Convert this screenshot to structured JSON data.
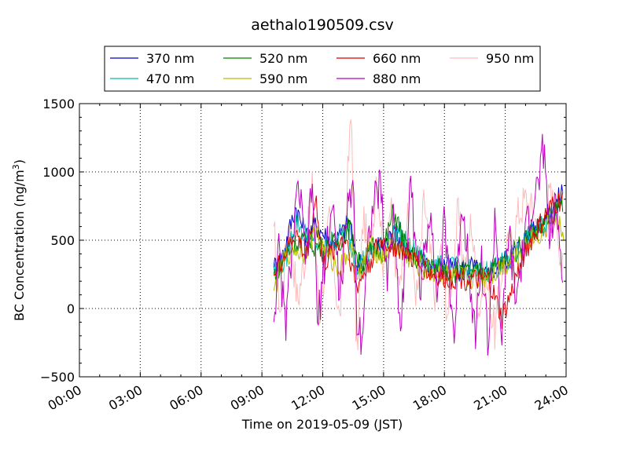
{
  "chart_data": {
    "type": "line",
    "title": "aethalo190509.csv",
    "xlabel": "Time on 2019-05-09 (JST)",
    "ylabel": {
      "prefix": "BC Concentration (ng/m",
      "sup": "3",
      "suffix": ")"
    },
    "xlim": [
      "00:00",
      "24:00"
    ],
    "ylim": [
      -500,
      1500
    ],
    "x_ticks": [
      "00:00",
      "03:00",
      "06:00",
      "09:00",
      "12:00",
      "15:00",
      "18:00",
      "21:00",
      "24:00"
    ],
    "y_ticks": [
      "−500",
      "0",
      "500",
      "1000",
      "1500"
    ],
    "grid": true,
    "legend_position": "top, above plot",
    "series": [
      {
        "name": "370 nm",
        "color": "#0000cc",
        "anchors": [
          [
            "09:35",
            300
          ],
          [
            "10:00",
            380
          ],
          [
            "10:40",
            750
          ],
          [
            "11:10",
            520
          ],
          [
            "11:40",
            610
          ],
          [
            "12:30",
            470
          ],
          [
            "13:00",
            560
          ],
          [
            "13:20",
            640
          ],
          [
            "13:40",
            310
          ],
          [
            "14:20",
            420
          ],
          [
            "15:00",
            460
          ],
          [
            "15:30",
            550
          ],
          [
            "16:00",
            470
          ],
          [
            "16:30",
            340
          ],
          [
            "17:00",
            380
          ],
          [
            "17:30",
            290
          ],
          [
            "18:00",
            330
          ],
          [
            "18:40",
            270
          ],
          [
            "19:20",
            310
          ],
          [
            "20:00",
            230
          ],
          [
            "20:40",
            310
          ],
          [
            "21:20",
            390
          ],
          [
            "22:00",
            520
          ],
          [
            "22:40",
            640
          ],
          [
            "23:20",
            700
          ],
          [
            "23:50",
            880
          ]
        ]
      },
      {
        "name": "470 nm",
        "color": "#00bbaa",
        "anchors": [
          [
            "09:35",
            280
          ],
          [
            "10:10",
            350
          ],
          [
            "10:40",
            650
          ],
          [
            "11:20",
            500
          ],
          [
            "12:00",
            430
          ],
          [
            "12:40",
            520
          ],
          [
            "13:10",
            580
          ],
          [
            "13:40",
            330
          ],
          [
            "14:20",
            400
          ],
          [
            "15:00",
            450
          ],
          [
            "15:40",
            580
          ],
          [
            "16:20",
            430
          ],
          [
            "17:00",
            350
          ],
          [
            "17:40",
            300
          ],
          [
            "18:20",
            300
          ],
          [
            "19:00",
            280
          ],
          [
            "19:40",
            260
          ],
          [
            "20:20",
            290
          ],
          [
            "21:00",
            340
          ],
          [
            "21:40",
            430
          ],
          [
            "22:20",
            560
          ],
          [
            "23:00",
            620
          ],
          [
            "23:50",
            830
          ]
        ]
      },
      {
        "name": "520 nm",
        "color": "#008000",
        "anchors": [
          [
            "09:35",
            250
          ],
          [
            "10:20",
            420
          ],
          [
            "10:50",
            500
          ],
          [
            "11:30",
            470
          ],
          [
            "12:10",
            430
          ],
          [
            "12:50",
            500
          ],
          [
            "13:20",
            600
          ],
          [
            "13:50",
            300
          ],
          [
            "14:30",
            450
          ],
          [
            "15:00",
            430
          ],
          [
            "15:30",
            720
          ],
          [
            "16:10",
            410
          ],
          [
            "16:50",
            350
          ],
          [
            "17:30",
            290
          ],
          [
            "18:10",
            280
          ],
          [
            "18:50",
            270
          ],
          [
            "19:30",
            250
          ],
          [
            "20:10",
            280
          ],
          [
            "20:50",
            320
          ],
          [
            "21:30",
            420
          ],
          [
            "22:10",
            540
          ],
          [
            "22:50",
            600
          ],
          [
            "23:50",
            790
          ]
        ]
      },
      {
        "name": "590 nm",
        "color": "#bbbb00",
        "anchors": [
          [
            "09:35",
            130
          ],
          [
            "10:00",
            320
          ],
          [
            "10:30",
            450
          ],
          [
            "11:00",
            400
          ],
          [
            "11:40",
            560
          ],
          [
            "12:10",
            380
          ],
          [
            "12:50",
            300
          ],
          [
            "13:20",
            420
          ],
          [
            "13:50",
            240
          ],
          [
            "14:20",
            480
          ],
          [
            "14:50",
            380
          ],
          [
            "15:30",
            470
          ],
          [
            "16:10",
            380
          ],
          [
            "16:50",
            300
          ],
          [
            "17:30",
            260
          ],
          [
            "18:10",
            240
          ],
          [
            "18:50",
            230
          ],
          [
            "19:30",
            220
          ],
          [
            "20:10",
            240
          ],
          [
            "20:50",
            300
          ],
          [
            "21:30",
            380
          ],
          [
            "22:10",
            500
          ],
          [
            "22:50",
            560
          ],
          [
            "23:30",
            650
          ],
          [
            "23:55",
            560
          ]
        ]
      },
      {
        "name": "660 nm",
        "color": "#dd0000",
        "anchors": [
          [
            "09:35",
            240
          ],
          [
            "10:10",
            400
          ],
          [
            "10:40",
            560
          ],
          [
            "11:10",
            360
          ],
          [
            "11:40",
            820
          ],
          [
            "12:00",
            300
          ],
          [
            "12:40",
            470
          ],
          [
            "13:10",
            520
          ],
          [
            "13:40",
            150
          ],
          [
            "14:10",
            300
          ],
          [
            "14:50",
            490
          ],
          [
            "15:30",
            460
          ],
          [
            "16:10",
            400
          ],
          [
            "16:50",
            300
          ],
          [
            "17:30",
            240
          ],
          [
            "18:10",
            220
          ],
          [
            "18:50",
            230
          ],
          [
            "19:30",
            200
          ],
          [
            "20:10",
            210
          ],
          [
            "20:50",
            -80
          ],
          [
            "21:20",
            120
          ],
          [
            "21:50",
            380
          ],
          [
            "22:30",
            550
          ],
          [
            "23:10",
            720
          ],
          [
            "23:50",
            800
          ]
        ]
      },
      {
        "name": "880 nm",
        "color": "#bb00bb",
        "anchors": [
          [
            "09:35",
            -100
          ],
          [
            "09:50",
            420
          ],
          [
            "10:10",
            -150
          ],
          [
            "10:30",
            500
          ],
          [
            "10:50",
            900
          ],
          [
            "11:10",
            300
          ],
          [
            "11:30",
            950
          ],
          [
            "11:45",
            -150
          ],
          [
            "12:00",
            250
          ],
          [
            "12:30",
            780
          ],
          [
            "12:50",
            80
          ],
          [
            "13:10",
            620
          ],
          [
            "13:30",
            1000
          ],
          [
            "13:40",
            -50
          ],
          [
            "13:55",
            -200
          ],
          [
            "14:20",
            650
          ],
          [
            "14:50",
            920
          ],
          [
            "15:10",
            200
          ],
          [
            "15:30",
            700
          ],
          [
            "15:50",
            -150
          ],
          [
            "16:20",
            880
          ],
          [
            "16:50",
            150
          ],
          [
            "17:20",
            780
          ],
          [
            "17:40",
            50
          ],
          [
            "18:00",
            620
          ],
          [
            "18:30",
            -230
          ],
          [
            "18:50",
            800
          ],
          [
            "19:10",
            420
          ],
          [
            "19:30",
            -200
          ],
          [
            "19:50",
            350
          ],
          [
            "20:10",
            -280
          ],
          [
            "20:30",
            720
          ],
          [
            "20:50",
            -270
          ],
          [
            "21:10",
            600
          ],
          [
            "21:30",
            40
          ],
          [
            "21:50",
            360
          ],
          [
            "22:10",
            680
          ],
          [
            "22:40",
            920
          ],
          [
            "22:55",
            1220
          ],
          [
            "23:10",
            500
          ],
          [
            "23:30",
            740
          ],
          [
            "23:50",
            300
          ]
        ]
      },
      {
        "name": "950 nm",
        "color": "#ffbbbb",
        "anchors": [
          [
            "09:35",
            600
          ],
          [
            "09:55",
            -50
          ],
          [
            "10:20",
            680
          ],
          [
            "10:45",
            50
          ],
          [
            "11:10",
            420
          ],
          [
            "11:30",
            900
          ],
          [
            "11:50",
            -80
          ],
          [
            "12:20",
            650
          ],
          [
            "12:50",
            -100
          ],
          [
            "13:10",
            800
          ],
          [
            "13:25",
            1460
          ],
          [
            "13:40",
            -400
          ],
          [
            "14:00",
            700
          ],
          [
            "14:20",
            300
          ],
          [
            "14:40",
            1060
          ],
          [
            "15:00",
            300
          ],
          [
            "15:20",
            760
          ],
          [
            "15:40",
            140
          ],
          [
            "16:10",
            640
          ],
          [
            "16:40",
            60
          ],
          [
            "17:00",
            800
          ],
          [
            "17:30",
            100
          ],
          [
            "17:50",
            400
          ],
          [
            "18:10",
            -40
          ],
          [
            "18:40",
            700
          ],
          [
            "19:00",
            280
          ],
          [
            "19:20",
            660
          ],
          [
            "19:40",
            -20
          ],
          [
            "20:00",
            250
          ],
          [
            "20:30",
            -180
          ],
          [
            "20:50",
            300
          ],
          [
            "21:20",
            520
          ],
          [
            "21:40",
            700
          ],
          [
            "22:00",
            800
          ],
          [
            "22:30",
            650
          ],
          [
            "22:50",
            540
          ],
          [
            "23:10",
            820
          ],
          [
            "23:30",
            720
          ],
          [
            "23:50",
            270
          ]
        ]
      }
    ]
  }
}
